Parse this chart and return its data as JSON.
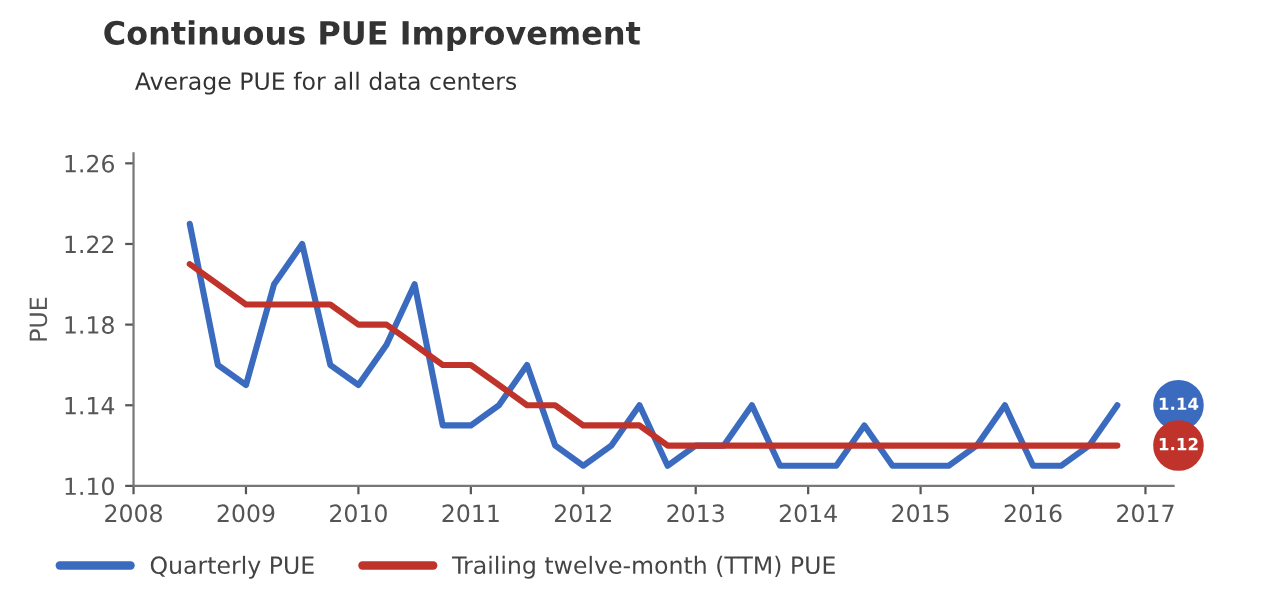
{
  "chart_data": {
    "type": "line",
    "title": "Continuous PUE Improvement",
    "subtitle": "Average PUE for all data centers",
    "ylabel": "PUE",
    "xlim": [
      2008,
      2017.25
    ],
    "xticks": [
      2008,
      2009,
      2010,
      2011,
      2012,
      2013,
      2014,
      2015,
      2016,
      2017
    ],
    "ylim": [
      1.1,
      1.265
    ],
    "yticks": [
      {
        "value": 1.1,
        "label": "1.10"
      },
      1.14,
      1.18,
      1.22,
      1.26
    ],
    "legend": "bottom left",
    "grid": false,
    "marker": "none",
    "line_style": "solid",
    "series": [
      {
        "name": "Quarterly PUE",
        "color": "#3a6bbf",
        "x": [
          2008.5,
          2008.75,
          2009.0,
          2009.25,
          2009.5,
          2009.75,
          2010.0,
          2010.25,
          2010.5,
          2010.75,
          2011.0,
          2011.25,
          2011.5,
          2011.75,
          2012.0,
          2012.25,
          2012.5,
          2012.75,
          2013.0,
          2013.25,
          2013.5,
          2013.75,
          2014.0,
          2014.25,
          2014.5,
          2014.75,
          2015.0,
          2015.25,
          2015.5,
          2015.75,
          2016.0,
          2016.25,
          2016.5,
          2016.75
        ],
        "values": [
          1.23,
          1.16,
          1.15,
          1.2,
          1.22,
          1.16,
          1.15,
          1.17,
          1.2,
          1.13,
          1.13,
          1.14,
          1.16,
          1.12,
          1.11,
          1.12,
          1.14,
          1.11,
          1.12,
          1.12,
          1.14,
          1.11,
          1.11,
          1.11,
          1.13,
          1.11,
          1.11,
          1.11,
          1.12,
          1.14,
          1.11,
          1.11,
          1.12,
          1.14
        ]
      },
      {
        "name": "Trailing twelve-month (TTM) PUE",
        "color": "#c0332b",
        "x": [
          2008.5,
          2009.0,
          2009.25,
          2009.5,
          2009.75,
          2010.0,
          2010.25,
          2010.5,
          2010.75,
          2011.0,
          2011.25,
          2011.5,
          2011.75,
          2012.0,
          2012.25,
          2012.5,
          2012.75,
          2013.0,
          2014.0,
          2015.0,
          2016.0,
          2016.75
        ],
        "values": [
          1.21,
          1.19,
          1.19,
          1.19,
          1.19,
          1.18,
          1.18,
          1.17,
          1.16,
          1.16,
          1.15,
          1.14,
          1.14,
          1.13,
          1.13,
          1.13,
          1.12,
          1.12,
          1.12,
          1.12,
          1.12,
          1.12
        ]
      }
    ],
    "annotations": [
      {
        "text": "1.14",
        "x": 2016.75,
        "y": 1.14
      },
      {
        "text": "1.12",
        "x": 2016.75,
        "y": 1.12
      }
    ]
  }
}
